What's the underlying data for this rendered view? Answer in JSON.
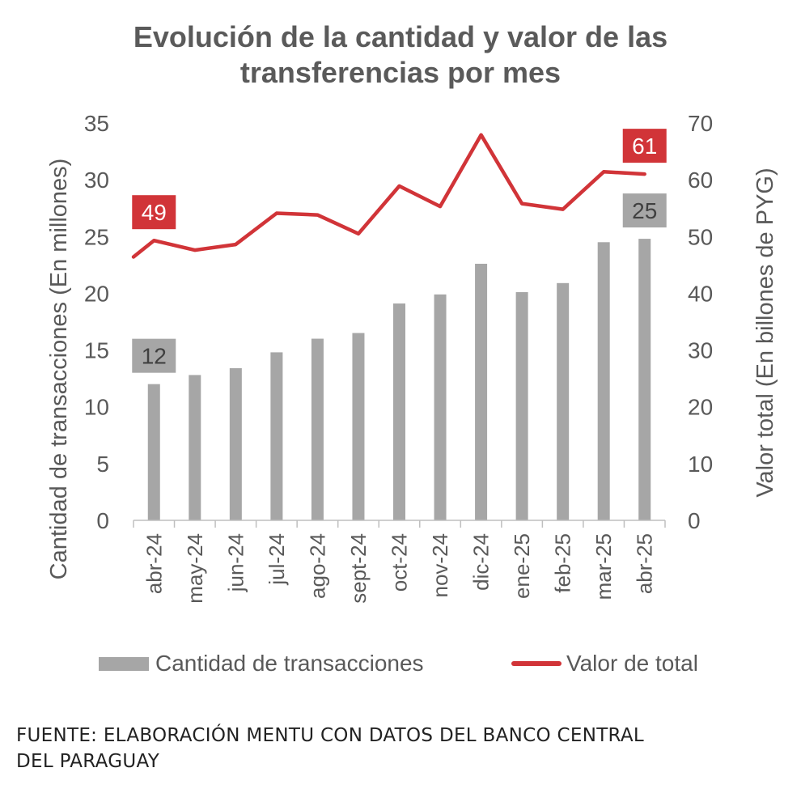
{
  "chart_data": {
    "type": "bar",
    "title_line1": "Evolución de la cantidad y valor de las",
    "title_line2": "transferencias por mes",
    "categories": [
      "abr-24",
      "may-24",
      "jun-24",
      "jul-24",
      "ago-24",
      "sept-24",
      "oct-24",
      "nov-24",
      "dic-24",
      "ene-25",
      "feb-25",
      "mar-25",
      "abr-25"
    ],
    "ylabel_left": "Cantidad de  transacciones (En millones)",
    "ylabel_right": "Valor total (En billones de PYG)",
    "ylim_left": [
      0,
      35
    ],
    "ylim_right": [
      0,
      70
    ],
    "yticks_left": [
      "0",
      "5",
      "10",
      "15",
      "20",
      "25",
      "30",
      "35"
    ],
    "yticks_right": [
      "0",
      "10",
      "20",
      "30",
      "40",
      "50",
      "60",
      "70"
    ],
    "grid": false,
    "series": [
      {
        "name": "Cantidad de transacciones",
        "type": "bar",
        "axis": "left",
        "color": "#a6a6a6",
        "values": [
          12.0,
          12.8,
          13.4,
          14.8,
          16.0,
          16.5,
          19.1,
          19.9,
          22.6,
          20.1,
          20.9,
          24.5,
          24.8
        ]
      },
      {
        "name": "Valor de total",
        "type": "line",
        "axis": "right",
        "color": "#d13438",
        "line_start": 46.4,
        "values": [
          49.3,
          47.6,
          48.6,
          54.1,
          53.8,
          50.5,
          58.9,
          55.3,
          67.9,
          55.8,
          54.8,
          61.4,
          61.0
        ]
      }
    ],
    "data_labels": [
      {
        "text": "49",
        "series": "Valor de total",
        "category": "abr-24",
        "color": "#d13438"
      },
      {
        "text": "61",
        "series": "Valor de total",
        "category": "abr-25",
        "color": "#d13438"
      },
      {
        "text": "12",
        "series": "Cantidad de transacciones",
        "category": "abr-24",
        "color": "#a6a6a6"
      },
      {
        "text": "25",
        "series": "Cantidad de transacciones",
        "category": "abr-25",
        "color": "#a6a6a6"
      }
    ],
    "legend_position": "bottom"
  },
  "source_line1": "FUENTE: ELABORACIÓN MENTU CON DATOS DEL BANCO CENTRAL",
  "source_line2": "DEL PARAGUAY"
}
